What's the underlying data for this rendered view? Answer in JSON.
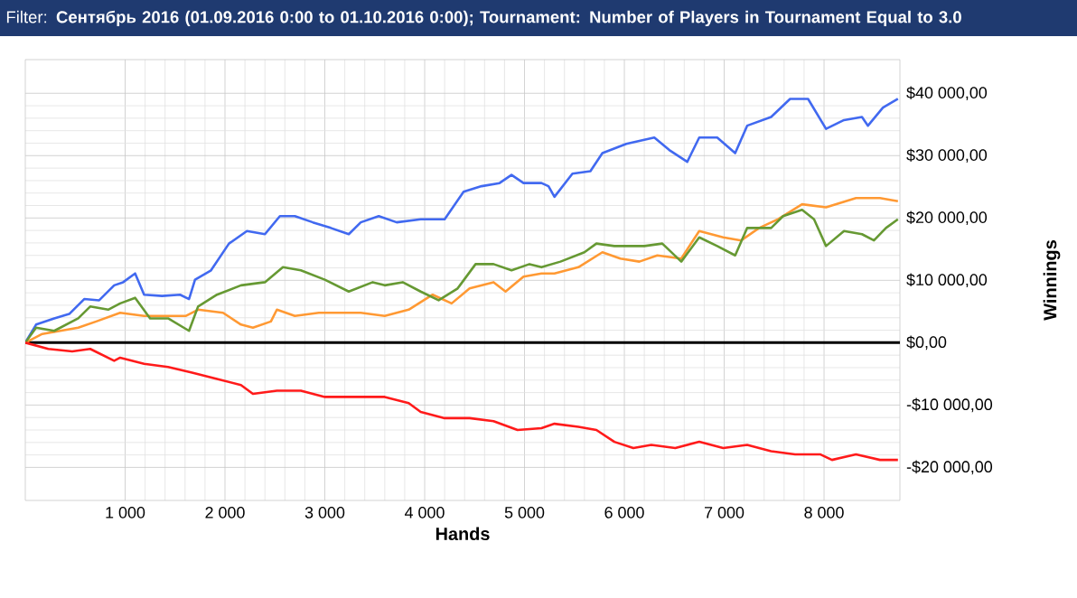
{
  "chart_data": {
    "type": "line",
    "title": "Filter: **Сентябрь 2016 (01.09.2016 0:00 to 01.10.2016 0:00); Tournament: Number of Players in Tournament Equal to 3.0**",
    "xlabel": "Hands",
    "ylabel": "Winnings",
    "xlim": [
      0,
      8760
    ],
    "ylim": [
      -25300,
      45400
    ],
    "xticks": [
      {
        "value": 1000,
        "label": "1 000"
      },
      {
        "value": 2000,
        "label": "2 000"
      },
      {
        "value": 3000,
        "label": "3 000"
      },
      {
        "value": 4000,
        "label": "4 000"
      },
      {
        "value": 5000,
        "label": "5 000"
      },
      {
        "value": 6000,
        "label": "6 000"
      },
      {
        "value": 7000,
        "label": "7 000"
      },
      {
        "value": 8000,
        "label": "8 000"
      }
    ],
    "yticks": [
      {
        "value": -20000,
        "label": "-$20 000,00"
      },
      {
        "value": -10000,
        "label": "-$10 000,00"
      },
      {
        "value": 0,
        "label": "$0,00"
      },
      {
        "value": 10000,
        "label": "$10 000,00"
      },
      {
        "value": 20000,
        "label": "$20 000,00"
      },
      {
        "value": 30000,
        "label": "$30 000,00"
      },
      {
        "value": 40000,
        "label": "$40 000,00"
      }
    ],
    "grid": true,
    "marker": "none",
    "line_style": "solid",
    "ref_lines": [
      {
        "axis": "y",
        "value": 0,
        "color": "#000000"
      }
    ],
    "series": [
      {
        "color": "#4169f0",
        "x": [
          0,
          108,
          290,
          440,
          590,
          740,
          890,
          980,
          1100,
          1190,
          1370,
          1550,
          1640,
          1700,
          1860,
          2040,
          2220,
          2400,
          2550,
          2700,
          2880,
          3060,
          3240,
          3360,
          3540,
          3720,
          3960,
          4200,
          4390,
          4570,
          4750,
          4870,
          4990,
          5170,
          5240,
          5300,
          5480,
          5660,
          5780,
          6020,
          6300,
          6450,
          6630,
          6750,
          6930,
          7110,
          7230,
          7470,
          7660,
          7840,
          8020,
          8200,
          8380,
          8440,
          8590,
          8740
        ],
        "values": [
          0,
          2900,
          3900,
          4600,
          7000,
          6800,
          9200,
          9700,
          11100,
          7700,
          7500,
          7700,
          7000,
          10100,
          11600,
          15900,
          17900,
          17400,
          20300,
          20300,
          19300,
          18400,
          17400,
          19300,
          20300,
          19300,
          19800,
          19800,
          24200,
          25100,
          25600,
          26900,
          25600,
          25600,
          25100,
          23400,
          27100,
          27500,
          30400,
          31900,
          32900,
          30900,
          29000,
          32900,
          32900,
          30400,
          34800,
          36200,
          39100,
          39100,
          34300,
          35700,
          36200,
          34800,
          37700,
          39100
        ]
      },
      {
        "color": "#ff9933",
        "x": [
          0,
          170,
          350,
          530,
          710,
          950,
          1190,
          1430,
          1610,
          1730,
          1980,
          2160,
          2280,
          2460,
          2520,
          2700,
          2940,
          3180,
          3360,
          3600,
          3840,
          4080,
          4270,
          4450,
          4690,
          4810,
          4990,
          5170,
          5300,
          5540,
          5780,
          5960,
          6150,
          6330,
          6570,
          6750,
          6990,
          7170,
          7350,
          7540,
          7780,
          8020,
          8320,
          8560,
          8740
        ],
        "values": [
          0,
          1400,
          1900,
          2400,
          3400,
          4800,
          4300,
          4300,
          4300,
          5300,
          4800,
          2900,
          2400,
          3400,
          5300,
          4300,
          4800,
          4800,
          4800,
          4300,
          5300,
          7700,
          6300,
          8700,
          9700,
          8200,
          10600,
          11100,
          11100,
          12100,
          14500,
          13500,
          13000,
          14000,
          13500,
          17900,
          16900,
          16400,
          18400,
          19800,
          22200,
          21700,
          23200,
          23200,
          22700
        ]
      },
      {
        "color": "#669933",
        "x": [
          0,
          108,
          290,
          530,
          650,
          830,
          950,
          1100,
          1250,
          1430,
          1640,
          1730,
          1920,
          2160,
          2400,
          2580,
          2760,
          3000,
          3240,
          3480,
          3600,
          3780,
          3960,
          4140,
          4330,
          4510,
          4690,
          4870,
          5050,
          5170,
          5360,
          5600,
          5720,
          5900,
          6200,
          6380,
          6570,
          6750,
          6930,
          7110,
          7230,
          7470,
          7590,
          7780,
          7900,
          8020,
          8200,
          8380,
          8500,
          8620,
          8740
        ],
        "values": [
          0,
          2400,
          1900,
          3900,
          5800,
          5300,
          6300,
          7200,
          3900,
          3900,
          1900,
          5800,
          7700,
          9200,
          9700,
          12100,
          11600,
          10100,
          8200,
          9700,
          9200,
          9700,
          8200,
          6800,
          8700,
          12600,
          12600,
          11600,
          12600,
          12100,
          13000,
          14500,
          15900,
          15500,
          15500,
          15900,
          13000,
          16900,
          15500,
          14000,
          18400,
          18400,
          20300,
          21300,
          19800,
          15500,
          17900,
          17400,
          16400,
          18400,
          19800
        ]
      },
      {
        "color": "#ff1a1a",
        "x": [
          0,
          230,
          470,
          650,
          890,
          950,
          1190,
          1430,
          1670,
          1920,
          2160,
          2280,
          2520,
          2760,
          3000,
          3360,
          3600,
          3840,
          3960,
          4200,
          4450,
          4690,
          4930,
          5170,
          5300,
          5540,
          5720,
          5900,
          6090,
          6270,
          6510,
          6750,
          6990,
          7230,
          7470,
          7710,
          7960,
          8080,
          8320,
          8560,
          8740
        ],
        "values": [
          0,
          -1000,
          -1400,
          -1000,
          -2900,
          -2400,
          -3400,
          -3900,
          -4800,
          -5800,
          -6800,
          -8200,
          -7700,
          -7700,
          -8700,
          -8700,
          -8700,
          -9700,
          -11100,
          -12100,
          -12100,
          -12600,
          -14000,
          -13700,
          -13000,
          -13500,
          -14000,
          -15900,
          -16900,
          -16400,
          -16900,
          -15900,
          -16900,
          -16400,
          -17400,
          -17900,
          -17900,
          -18800,
          -17900,
          -18800,
          -18800
        ]
      }
    ]
  }
}
